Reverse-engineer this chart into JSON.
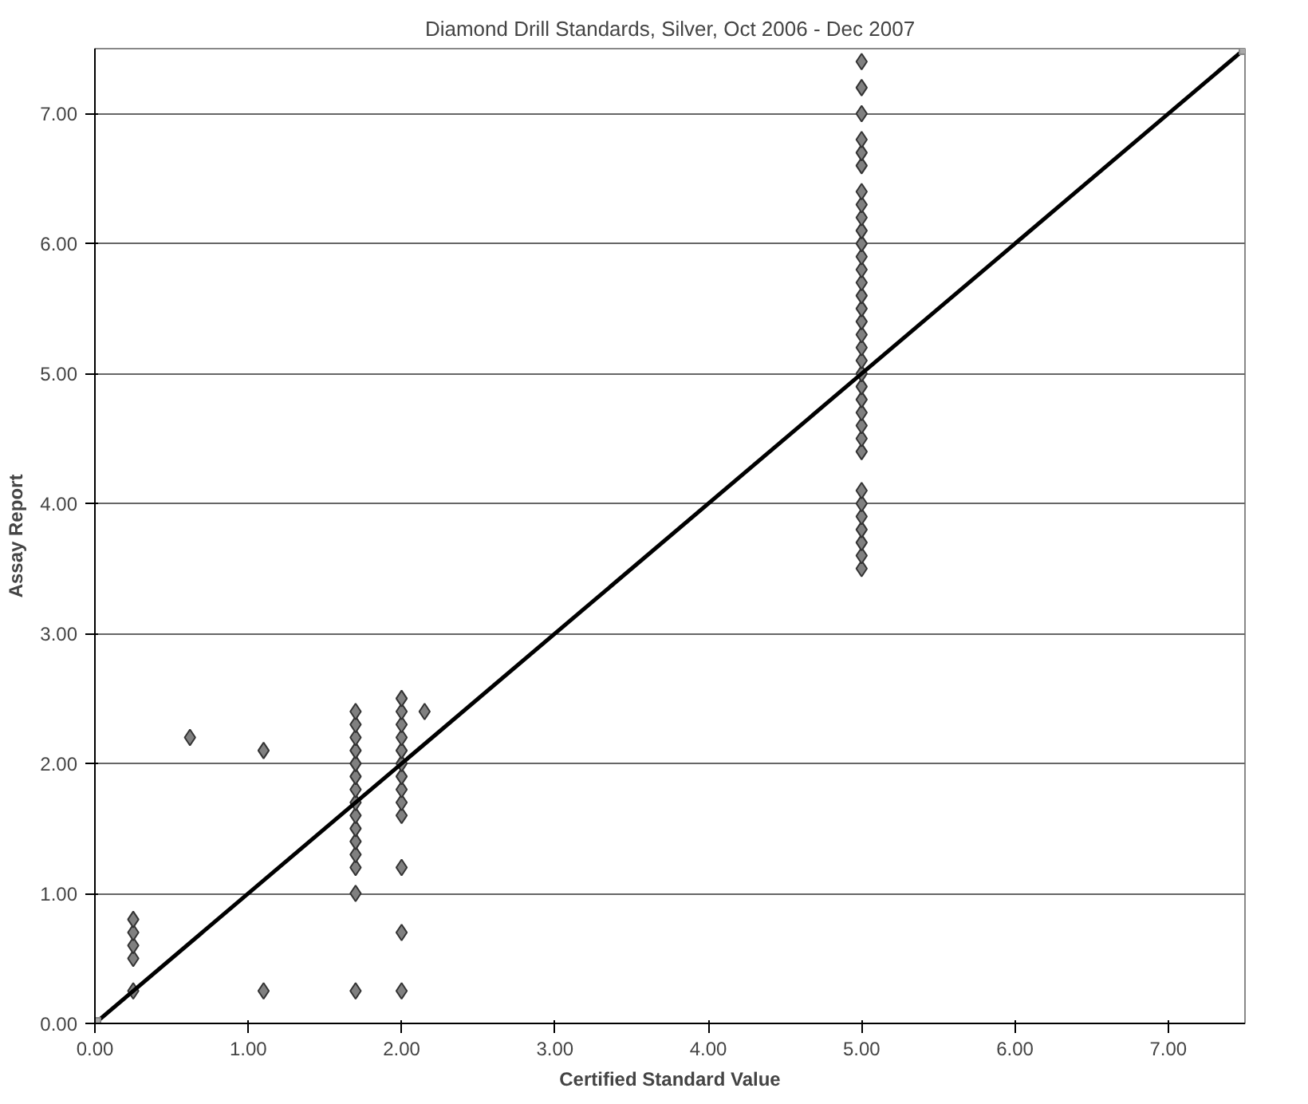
{
  "chart_data": {
    "type": "scatter",
    "title": "Diamond Drill Standards, Silver, Oct 2006 - Dec 2007",
    "xlabel": "Certified Standard Value",
    "ylabel": "Assay Report",
    "xlim": [
      0,
      7.5
    ],
    "ylim": [
      0,
      7.5
    ],
    "xticks": [
      {
        "value": 0,
        "label": "0.00"
      },
      {
        "value": 1,
        "label": "1.00"
      },
      {
        "value": 2,
        "label": "2.00"
      },
      {
        "value": 3,
        "label": "3.00"
      },
      {
        "value": 4,
        "label": "4.00"
      },
      {
        "value": 5,
        "label": "5.00"
      },
      {
        "value": 6,
        "label": "6.00"
      },
      {
        "value": 7,
        "label": "7.00"
      }
    ],
    "yticks": [
      {
        "value": 0,
        "label": "0.00"
      },
      {
        "value": 1,
        "label": "1.00"
      },
      {
        "value": 2,
        "label": "2.00"
      },
      {
        "value": 3,
        "label": "3.00"
      },
      {
        "value": 4,
        "label": "4.00"
      },
      {
        "value": 5,
        "label": "5.00"
      },
      {
        "value": 6,
        "label": "6.00"
      },
      {
        "value": 7,
        "label": "7.00"
      }
    ],
    "grid": "y",
    "series": [
      {
        "marker": "diamond",
        "color": "#808080",
        "x": [
          0.25,
          0.25,
          0.25,
          0.25,
          0.25,
          0.62,
          1.1,
          1.1,
          1.7,
          1.7,
          1.7,
          1.7,
          1.7,
          1.7,
          1.7,
          1.7,
          1.7,
          1.7,
          1.7,
          1.7,
          1.7,
          1.7,
          1.7,
          2.0,
          2.0,
          2.0,
          2.0,
          2.0,
          2.0,
          2.0,
          2.0,
          2.0,
          2.0,
          2.0,
          2.0,
          2.0,
          2.15,
          5,
          5,
          5,
          5,
          5,
          5,
          5,
          5,
          5,
          5,
          5,
          5,
          5,
          5,
          5,
          5,
          5,
          5,
          5,
          5,
          5,
          5,
          5,
          5,
          5,
          5,
          5,
          5,
          5,
          5,
          5,
          5,
          5,
          5
        ],
        "values": [
          0.25,
          0.5,
          0.6,
          0.7,
          0.8,
          2.2,
          2.1,
          0.25,
          0.25,
          1.0,
          1.2,
          1.3,
          1.4,
          1.5,
          1.6,
          1.7,
          1.8,
          1.9,
          2.0,
          2.1,
          2.2,
          2.3,
          2.4,
          0.25,
          0.7,
          1.2,
          1.6,
          1.7,
          1.8,
          1.9,
          2.0,
          2.1,
          2.2,
          2.3,
          2.4,
          2.5,
          2.4,
          3.5,
          3.6,
          3.7,
          3.8,
          3.9,
          4.0,
          4.1,
          4.4,
          4.5,
          4.6,
          4.7,
          4.8,
          4.9,
          5.0,
          5.1,
          5.2,
          5.3,
          5.4,
          5.5,
          5.6,
          5.7,
          5.8,
          5.9,
          6.0,
          6.1,
          6.2,
          6.3,
          6.4,
          6.6,
          6.7,
          6.8,
          7.0,
          7.2,
          7.4
        ]
      },
      {
        "type": "line",
        "marker": "square",
        "line_style": "solid",
        "color": "#000000",
        "x": [
          0,
          7.5
        ],
        "values": [
          0,
          7.5
        ]
      }
    ]
  }
}
